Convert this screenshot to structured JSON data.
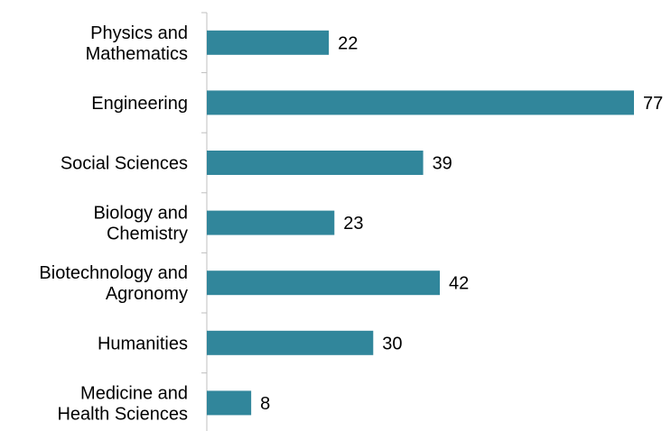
{
  "colors": {
    "bar": "#31869B",
    "axis": "#BFBFBF",
    "text": "#000000"
  },
  "chart_data": {
    "type": "bar",
    "orientation": "horizontal",
    "categories": [
      "Physics and\nMathematics",
      "Engineering",
      "Social Sciences",
      "Biology and\nChemistry",
      "Biotechnology and\nAgronomy",
      "Humanities",
      "Medicine and\nHealth Sciences"
    ],
    "values": [
      22,
      77,
      39,
      23,
      42,
      30,
      8
    ],
    "data_labels": [
      "22",
      "77",
      "39",
      "23",
      "42",
      "30",
      "8"
    ],
    "title": "",
    "xlabel": "",
    "ylabel": "",
    "xlim": [
      0,
      77
    ],
    "grid": false,
    "legend": "none"
  }
}
